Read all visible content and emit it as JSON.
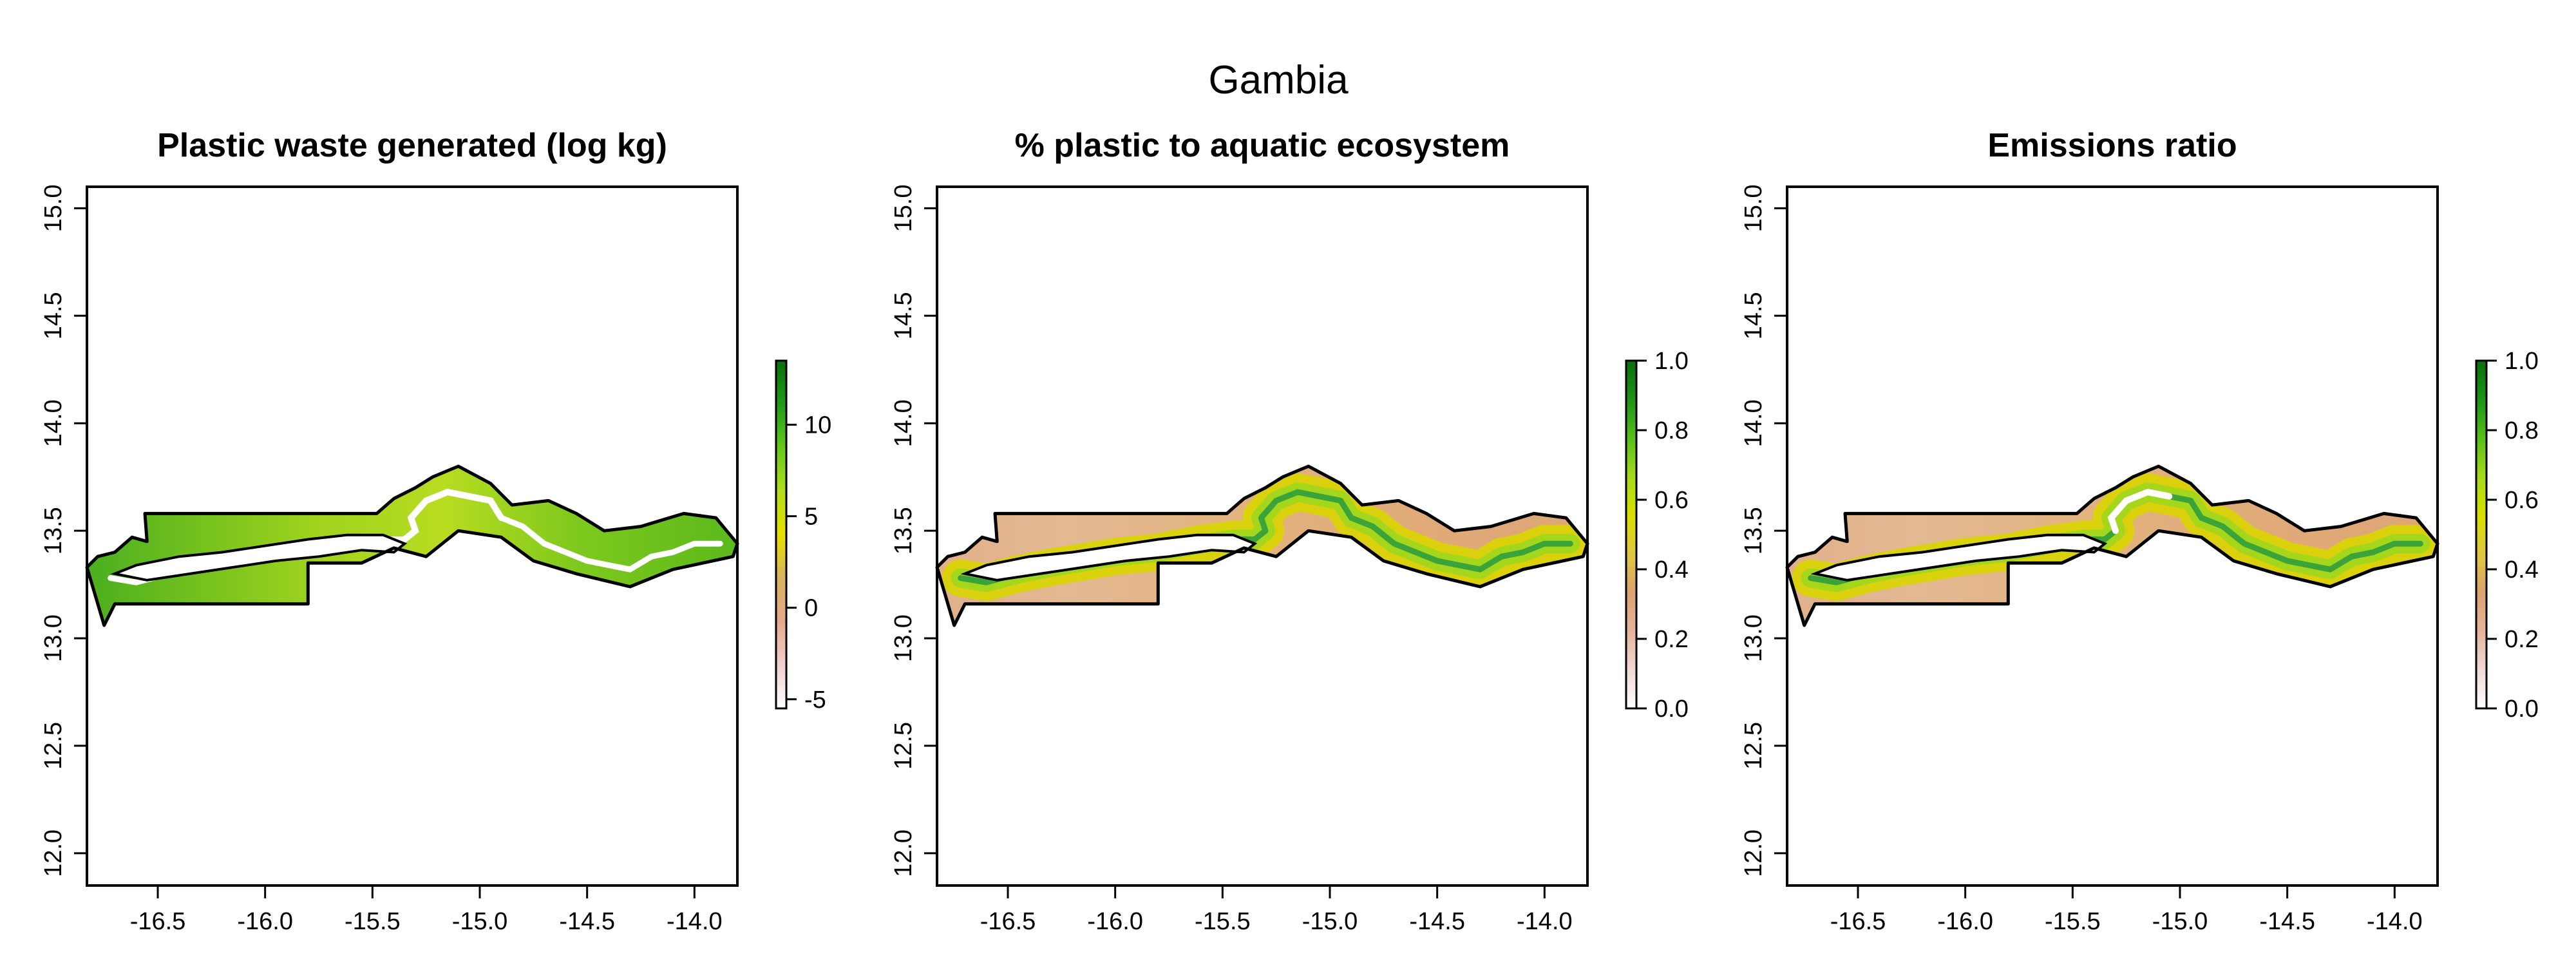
{
  "figure": {
    "title": "Gambia"
  },
  "panels": [
    {
      "title": "Plastic waste generated (log kg)",
      "xlim": [
        -16.83,
        -13.8
      ],
      "ylim": [
        11.85,
        15.1
      ],
      "x_ticks": [
        "-16.5",
        "-16.0",
        "-15.5",
        "-15.0",
        "-14.5",
        "-14.0"
      ],
      "x_tick_values": [
        -16.5,
        -16.0,
        -15.5,
        -15.0,
        -14.5,
        -14.0
      ],
      "y_ticks": [
        "12.0",
        "12.5",
        "13.0",
        "13.5",
        "14.0",
        "14.5",
        "15.0"
      ],
      "y_tick_values": [
        12.0,
        12.5,
        13.0,
        13.5,
        14.0,
        14.5,
        15.0
      ],
      "legend": {
        "range": [
          -5.5,
          13.5
        ],
        "ticks": [
          "-5",
          "0",
          "5",
          "10"
        ],
        "tick_values": [
          -5,
          0,
          5,
          10
        ],
        "colors": [
          "#ffffff",
          "#f2cfcf",
          "#e6a98a",
          "#d9b262",
          "#e6e000",
          "#b3dc1f",
          "#66c91c",
          "#1f9a1a",
          "#0a6e0a"
        ]
      },
      "fill_style": "green",
      "river_style": "white"
    },
    {
      "title": "% plastic to aquatic ecosystem",
      "xlim": [
        -16.83,
        -13.8
      ],
      "ylim": [
        11.85,
        15.1
      ],
      "x_ticks": [
        "-16.5",
        "-16.0",
        "-15.5",
        "-15.0",
        "-14.5",
        "-14.0"
      ],
      "x_tick_values": [
        -16.5,
        -16.0,
        -15.5,
        -15.0,
        -14.5,
        -14.0
      ],
      "y_ticks": [
        "12.0",
        "12.5",
        "13.0",
        "13.5",
        "14.0",
        "14.5",
        "15.0"
      ],
      "y_tick_values": [
        12.0,
        12.5,
        13.0,
        13.5,
        14.0,
        14.5,
        15.0
      ],
      "legend": {
        "range": [
          0.0,
          1.0
        ],
        "ticks": [
          "0.0",
          "0.2",
          "0.4",
          "0.6",
          "0.8",
          "1.0"
        ],
        "tick_values": [
          0.0,
          0.2,
          0.4,
          0.6,
          0.8,
          1.0
        ],
        "colors": [
          "#ffffff",
          "#f0d8d6",
          "#e6b49c",
          "#dca270",
          "#e0c640",
          "#d8df00",
          "#a6d91c",
          "#56bf1a",
          "#1c931a",
          "#0a6e0a"
        ]
      },
      "fill_style": "orange",
      "river_style": "green"
    },
    {
      "title": "Emissions ratio",
      "xlim": [
        -16.83,
        -13.8
      ],
      "ylim": [
        11.85,
        15.1
      ],
      "x_ticks": [
        "-16.5",
        "-16.0",
        "-15.5",
        "-15.0",
        "-14.5",
        "-14.0"
      ],
      "x_tick_values": [
        -16.5,
        -16.0,
        -15.5,
        -15.0,
        -14.5,
        -14.0
      ],
      "y_ticks": [
        "12.0",
        "12.5",
        "13.0",
        "13.5",
        "14.0",
        "14.5",
        "15.0"
      ],
      "y_tick_values": [
        12.0,
        12.5,
        13.0,
        13.5,
        14.0,
        14.5,
        15.0
      ],
      "legend": {
        "range": [
          0.0,
          1.0
        ],
        "ticks": [
          "0.0",
          "0.2",
          "0.4",
          "0.6",
          "0.8",
          "1.0"
        ],
        "tick_values": [
          0.0,
          0.2,
          0.4,
          0.6,
          0.8,
          1.0
        ],
        "colors": [
          "#ffffff",
          "#f0d8d6",
          "#e6b49c",
          "#dca270",
          "#e0c640",
          "#d8df00",
          "#a6d91c",
          "#56bf1a",
          "#1c931a",
          "#0a6e0a"
        ]
      },
      "fill_style": "orange",
      "river_style": "green-white"
    }
  ],
  "map": {
    "country_outline": [
      [
        -16.83,
        13.33
      ],
      [
        -16.75,
        13.06
      ],
      [
        -16.7,
        13.16
      ],
      [
        -15.8,
        13.16
      ],
      [
        -15.8,
        13.35
      ],
      [
        -15.55,
        13.35
      ],
      [
        -15.4,
        13.42
      ],
      [
        -15.25,
        13.38
      ],
      [
        -15.1,
        13.5
      ],
      [
        -14.9,
        13.47
      ],
      [
        -14.75,
        13.36
      ],
      [
        -14.55,
        13.3
      ],
      [
        -14.3,
        13.24
      ],
      [
        -14.1,
        13.32
      ],
      [
        -13.82,
        13.38
      ],
      [
        -13.8,
        13.44
      ],
      [
        -13.9,
        13.56
      ],
      [
        -14.05,
        13.58
      ],
      [
        -14.25,
        13.52
      ],
      [
        -14.42,
        13.5
      ],
      [
        -14.55,
        13.58
      ],
      [
        -14.68,
        13.64
      ],
      [
        -14.85,
        13.62
      ],
      [
        -14.95,
        13.72
      ],
      [
        -15.1,
        13.8
      ],
      [
        -15.22,
        13.75
      ],
      [
        -15.3,
        13.7
      ],
      [
        -15.4,
        13.65
      ],
      [
        -15.48,
        13.58
      ],
      [
        -16.56,
        13.58
      ],
      [
        -16.55,
        13.45
      ],
      [
        -16.62,
        13.47
      ],
      [
        -16.7,
        13.4
      ],
      [
        -16.78,
        13.38
      ],
      [
        -16.83,
        13.33
      ]
    ],
    "river": [
      [
        -16.72,
        13.28
      ],
      [
        -16.6,
        13.26
      ],
      [
        -16.45,
        13.3
      ],
      [
        -16.3,
        13.33
      ],
      [
        -16.18,
        13.35
      ],
      [
        -16.0,
        13.38
      ],
      [
        -15.8,
        13.4
      ],
      [
        -15.6,
        13.44
      ],
      [
        -15.45,
        13.46
      ],
      [
        -15.35,
        13.46
      ],
      [
        -15.3,
        13.5
      ],
      [
        -15.32,
        13.56
      ],
      [
        -15.25,
        13.64
      ],
      [
        -15.15,
        13.68
      ],
      [
        -15.05,
        13.66
      ],
      [
        -14.95,
        13.64
      ],
      [
        -14.9,
        13.56
      ],
      [
        -14.8,
        13.52
      ],
      [
        -14.7,
        13.44
      ],
      [
        -14.6,
        13.4
      ],
      [
        -14.5,
        13.36
      ],
      [
        -14.4,
        13.34
      ],
      [
        -14.3,
        13.32
      ],
      [
        -14.2,
        13.38
      ],
      [
        -14.1,
        13.4
      ],
      [
        -14.0,
        13.44
      ],
      [
        -13.88,
        13.44
      ]
    ],
    "estuary_cut": [
      [
        -16.7,
        13.3
      ],
      [
        -16.6,
        13.34
      ],
      [
        -16.4,
        13.38
      ],
      [
        -16.2,
        13.4
      ],
      [
        -16.0,
        13.43
      ],
      [
        -15.8,
        13.46
      ],
      [
        -15.62,
        13.48
      ],
      [
        -15.45,
        13.48
      ],
      [
        -15.35,
        13.44
      ],
      [
        -15.4,
        13.4
      ],
      [
        -15.55,
        13.41
      ],
      [
        -15.75,
        13.38
      ],
      [
        -15.95,
        13.36
      ],
      [
        -16.15,
        13.33
      ],
      [
        -16.35,
        13.3
      ],
      [
        -16.55,
        13.27
      ],
      [
        -16.7,
        13.3
      ]
    ]
  }
}
